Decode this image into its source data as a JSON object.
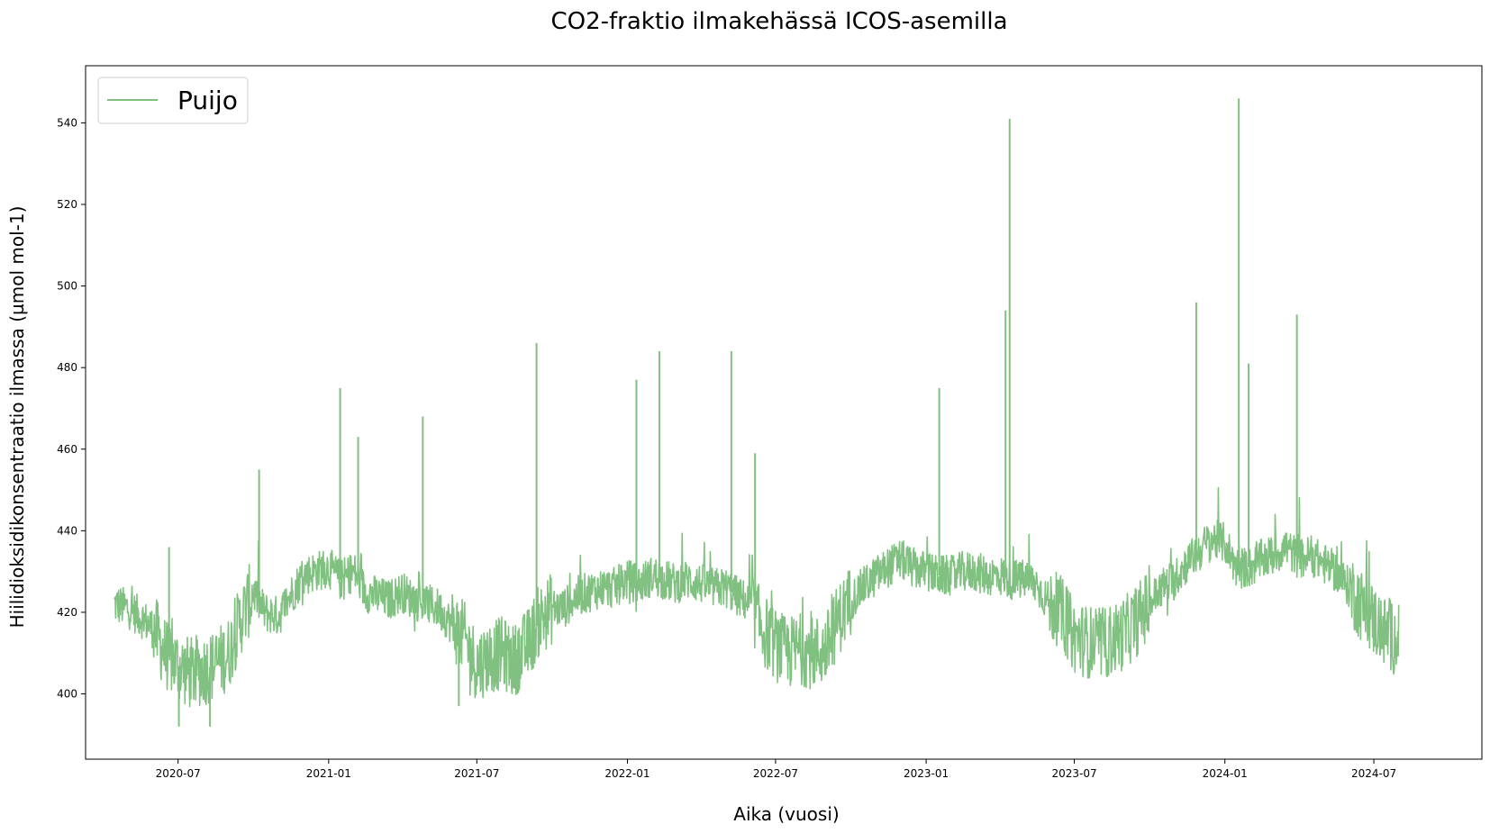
{
  "chart_data": {
    "type": "line",
    "title": "CO2-fraktio ilmakehässä ICOS-asemilla",
    "xlabel": "Aika (vuosi)",
    "ylabel": "Hiilidioksidikonsentraatio ilmassa (µmol mol-1)",
    "xlim": [
      "2020-03-10",
      "2024-11-10"
    ],
    "ylim": [
      384,
      554
    ],
    "x_tick_labels": [
      "2020-07",
      "2021-01",
      "2021-07",
      "2022-01",
      "2022-07",
      "2023-01",
      "2023-07",
      "2024-01",
      "2024-07"
    ],
    "y_tick_labels": [
      "400",
      "420",
      "440",
      "460",
      "480",
      "500",
      "520",
      "540"
    ],
    "grid": false,
    "legend_position": "top-left",
    "series": [
      {
        "name": "Puijo",
        "color": "#80c080",
        "x": [
          "2020-04-14",
          "2020-05-01",
          "2020-05-15",
          "2020-06-01",
          "2020-06-15",
          "2020-07-01",
          "2020-07-15",
          "2020-08-01",
          "2020-08-15",
          "2020-09-01",
          "2020-09-15",
          "2020-10-01",
          "2020-10-15",
          "2020-11-01",
          "2020-11-15",
          "2020-12-01",
          "2020-12-15",
          "2021-01-01",
          "2021-01-15",
          "2021-02-01",
          "2021-02-15",
          "2021-03-01",
          "2021-03-15",
          "2021-04-01",
          "2021-04-15",
          "2021-05-01",
          "2021-05-15",
          "2021-06-01",
          "2021-06-15",
          "2021-07-01",
          "2021-07-15",
          "2021-08-01",
          "2021-08-15",
          "2021-09-01",
          "2021-09-15",
          "2021-10-01",
          "2021-10-15",
          "2021-11-01",
          "2021-11-15",
          "2021-12-01",
          "2021-12-15",
          "2022-01-01",
          "2022-01-15",
          "2022-02-01",
          "2022-02-15",
          "2022-03-01",
          "2022-03-15",
          "2022-04-01",
          "2022-04-15",
          "2022-05-01",
          "2022-05-15",
          "2022-06-01",
          "2022-06-15",
          "2022-07-01",
          "2022-07-15",
          "2022-08-01",
          "2022-08-15",
          "2022-09-01",
          "2022-09-15",
          "2022-10-01",
          "2022-10-15",
          "2022-11-01",
          "2022-11-15",
          "2022-12-01",
          "2022-12-15",
          "2023-01-01",
          "2023-01-15",
          "2023-02-01",
          "2023-02-15",
          "2023-03-01",
          "2023-03-15",
          "2023-04-01",
          "2023-04-15",
          "2023-05-01",
          "2023-05-15",
          "2023-06-01",
          "2023-06-15",
          "2023-07-01",
          "2023-07-15",
          "2023-08-01",
          "2023-08-15",
          "2023-09-01",
          "2023-09-15",
          "2023-10-01",
          "2023-10-15",
          "2023-11-01",
          "2023-11-15",
          "2023-12-01",
          "2023-12-15",
          "2024-01-01",
          "2024-01-15",
          "2024-02-01",
          "2024-02-15",
          "2024-03-01",
          "2024-03-15",
          "2024-04-01",
          "2024-04-15",
          "2024-05-01",
          "2024-05-15",
          "2024-06-01",
          "2024-06-15",
          "2024-07-01",
          "2024-07-15",
          "2024-08-01"
        ],
        "y": [
          422,
          421,
          419,
          416,
          410,
          407,
          405,
          406,
          407,
          410,
          418,
          425,
          420,
          419,
          424,
          429,
          430,
          431,
          428,
          430,
          425,
          424,
          423,
          425,
          423,
          422,
          421,
          417,
          414,
          407,
          409,
          410,
          408,
          412,
          418,
          421,
          421,
          424,
          425,
          426,
          426,
          428,
          427,
          429,
          428,
          427,
          428,
          427,
          426,
          426,
          424,
          422,
          416,
          412,
          410,
          411,
          410,
          411,
          418,
          423,
          426,
          429,
          431,
          433,
          431,
          430,
          429,
          429,
          430,
          430,
          429,
          429,
          428,
          428,
          427,
          422,
          420,
          414,
          413,
          412,
          413,
          415,
          418,
          422,
          426,
          428,
          432,
          435,
          438,
          437,
          431,
          431,
          433,
          434,
          436,
          433,
          434,
          432,
          430,
          426,
          422,
          418,
          415,
          413
        ],
        "spikes": [
          {
            "x": "2020-06-20",
            "y": 436
          },
          {
            "x": "2020-07-02",
            "y": 392
          },
          {
            "x": "2020-08-09",
            "y": 392
          },
          {
            "x": "2020-10-08",
            "y": 455
          },
          {
            "x": "2021-01-15",
            "y": 475
          },
          {
            "x": "2021-02-06",
            "y": 463
          },
          {
            "x": "2021-04-26",
            "y": 468
          },
          {
            "x": "2021-06-09",
            "y": 397
          },
          {
            "x": "2021-09-12",
            "y": 486
          },
          {
            "x": "2022-01-12",
            "y": 477
          },
          {
            "x": "2022-02-09",
            "y": 484
          },
          {
            "x": "2022-05-08",
            "y": 484
          },
          {
            "x": "2022-06-06",
            "y": 459
          },
          {
            "x": "2023-01-17",
            "y": 475
          },
          {
            "x": "2023-04-08",
            "y": 494
          },
          {
            "x": "2023-04-13",
            "y": 541
          },
          {
            "x": "2023-11-27",
            "y": 496
          },
          {
            "x": "2024-01-18",
            "y": 546
          },
          {
            "x": "2024-01-30",
            "y": 481
          },
          {
            "x": "2024-03-29",
            "y": 493
          }
        ]
      }
    ]
  }
}
